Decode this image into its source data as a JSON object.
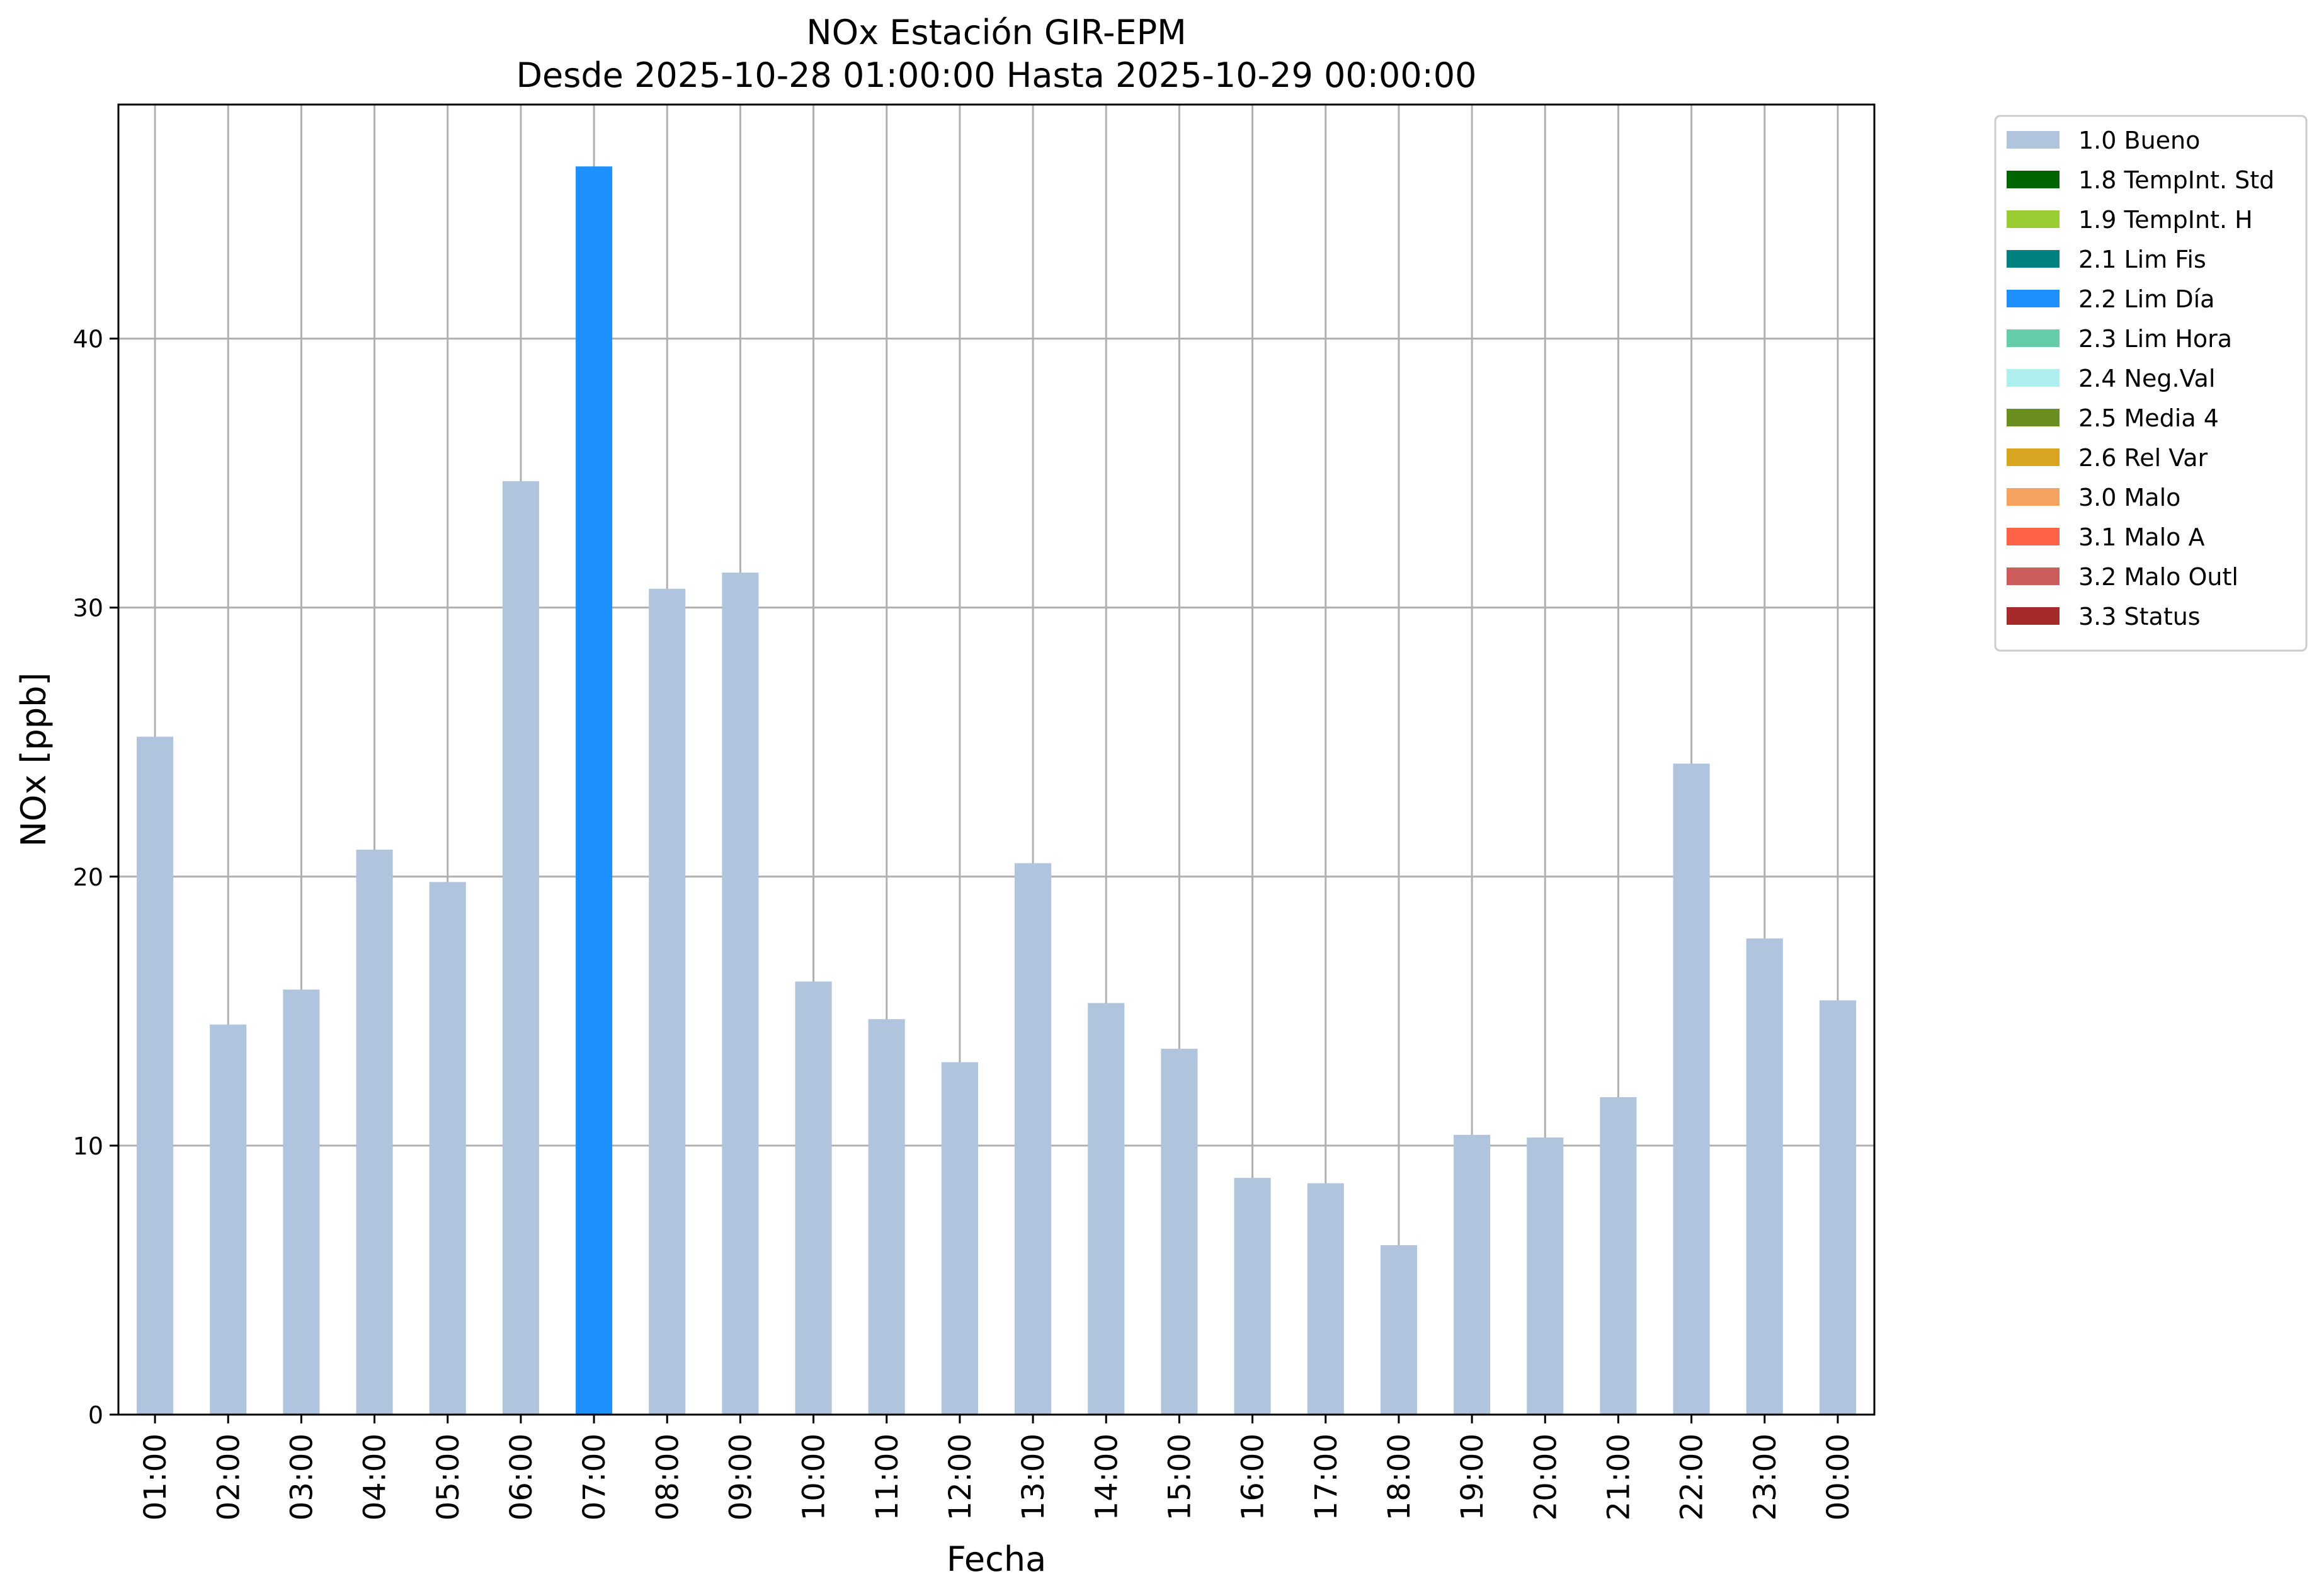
{
  "chart_data": {
    "type": "bar",
    "title": "NOx Estación GIR-EPM",
    "subtitle": "Desde 2025-10-28 01:00:00 Hasta 2025-10-29 00:00:00",
    "xlabel": "Fecha",
    "ylabel": "NOx [ppb]",
    "ylim": [
      0,
      48.7
    ],
    "yticks": [
      0,
      10,
      20,
      30,
      40
    ],
    "grid": true,
    "legend_position": "outside-top-right",
    "categories": [
      "01:00",
      "02:00",
      "03:00",
      "04:00",
      "05:00",
      "06:00",
      "07:00",
      "08:00",
      "09:00",
      "10:00",
      "11:00",
      "12:00",
      "13:00",
      "14:00",
      "15:00",
      "16:00",
      "17:00",
      "18:00",
      "19:00",
      "20:00",
      "21:00",
      "22:00",
      "23:00",
      "00:00"
    ],
    "values": [
      25.2,
      14.5,
      15.8,
      21.0,
      19.8,
      34.7,
      46.4,
      30.7,
      31.3,
      16.1,
      14.7,
      13.1,
      20.5,
      15.3,
      13.6,
      8.8,
      8.6,
      6.3,
      10.4,
      10.3,
      11.8,
      24.2,
      17.7,
      15.4
    ],
    "quality_flags": [
      "1.0 Bueno",
      "1.0 Bueno",
      "1.0 Bueno",
      "1.0 Bueno",
      "1.0 Bueno",
      "1.0 Bueno",
      "2.2 Lim Día",
      "1.0 Bueno",
      "1.0 Bueno",
      "1.0 Bueno",
      "1.0 Bueno",
      "1.0 Bueno",
      "1.0 Bueno",
      "1.0 Bueno",
      "1.0 Bueno",
      "1.0 Bueno",
      "1.0 Bueno",
      "1.0 Bueno",
      "1.0 Bueno",
      "1.0 Bueno",
      "1.0 Bueno",
      "1.0 Bueno",
      "1.0 Bueno",
      "1.0 Bueno"
    ],
    "legend": [
      {
        "label": "1.0 Bueno",
        "color": "#b0c4de"
      },
      {
        "label": "1.8 TempInt. Std",
        "color": "#006400"
      },
      {
        "label": "1.9 TempInt. H",
        "color": "#9acd32"
      },
      {
        "label": "2.1 Lim Fis",
        "color": "#008080"
      },
      {
        "label": "2.2 Lim Día",
        "color": "#1e90ff"
      },
      {
        "label": "2.3 Lim Hora",
        "color": "#66cdaa"
      },
      {
        "label": "2.4 Neg.Val",
        "color": "#afeeee"
      },
      {
        "label": "2.5 Media 4",
        "color": "#6b8e23"
      },
      {
        "label": "2.6 Rel Var",
        "color": "#daa520"
      },
      {
        "label": "3.0 Malo",
        "color": "#f4a460"
      },
      {
        "label": "3.1 Malo A",
        "color": "#ff6347"
      },
      {
        "label": "3.2 Malo Outl",
        "color": "#cd5c5c"
      },
      {
        "label": "3.3 Status",
        "color": "#a52a2a"
      }
    ]
  }
}
